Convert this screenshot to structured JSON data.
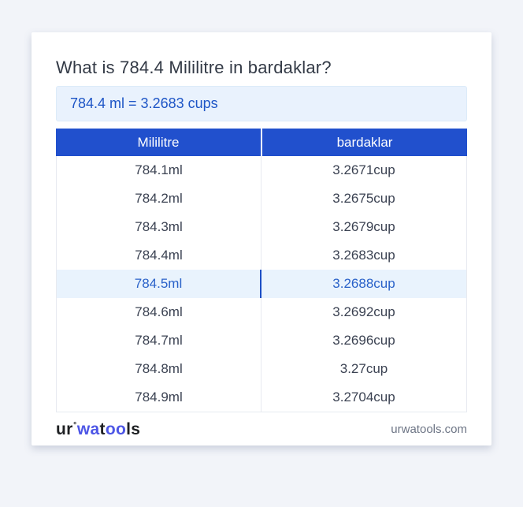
{
  "colors": {
    "page_bg": "#f2f4f9",
    "accent_blue": "#2150cd",
    "result_bg": "#e9f2fd",
    "result_text": "#1d55c6",
    "highlight_bg": "#e9f3fd",
    "highlight_text": "#2a62c9",
    "highlight_divider": "#1b4ec5"
  },
  "header": {
    "title": "What is 784.4 Mililitre in bardaklar?",
    "result": "784.4 ml = 3.2683 cups"
  },
  "table": {
    "headers": [
      "Mililitre",
      "bardaklar"
    ],
    "rows": [
      {
        "ml": "784.1ml",
        "cup": "3.2671cup",
        "highlighted": false
      },
      {
        "ml": "784.2ml",
        "cup": "3.2675cup",
        "highlighted": false
      },
      {
        "ml": "784.3ml",
        "cup": "3.2679cup",
        "highlighted": false
      },
      {
        "ml": "784.4ml",
        "cup": "3.2683cup",
        "highlighted": false
      },
      {
        "ml": "784.5ml",
        "cup": "3.2688cup",
        "highlighted": true
      },
      {
        "ml": "784.6ml",
        "cup": "3.2692cup",
        "highlighted": false
      },
      {
        "ml": "784.7ml",
        "cup": "3.2696cup",
        "highlighted": false
      },
      {
        "ml": "784.8ml",
        "cup": "3.27cup",
        "highlighted": false
      },
      {
        "ml": "784.9ml",
        "cup": "3.2704cup",
        "highlighted": false
      }
    ]
  },
  "footer": {
    "logo": {
      "seg1": "ur",
      "degree": "°",
      "seg2": "wa",
      "seg3": "t",
      "seg4": "oo",
      "seg5": "ls"
    },
    "domain": "urwatools.com"
  }
}
